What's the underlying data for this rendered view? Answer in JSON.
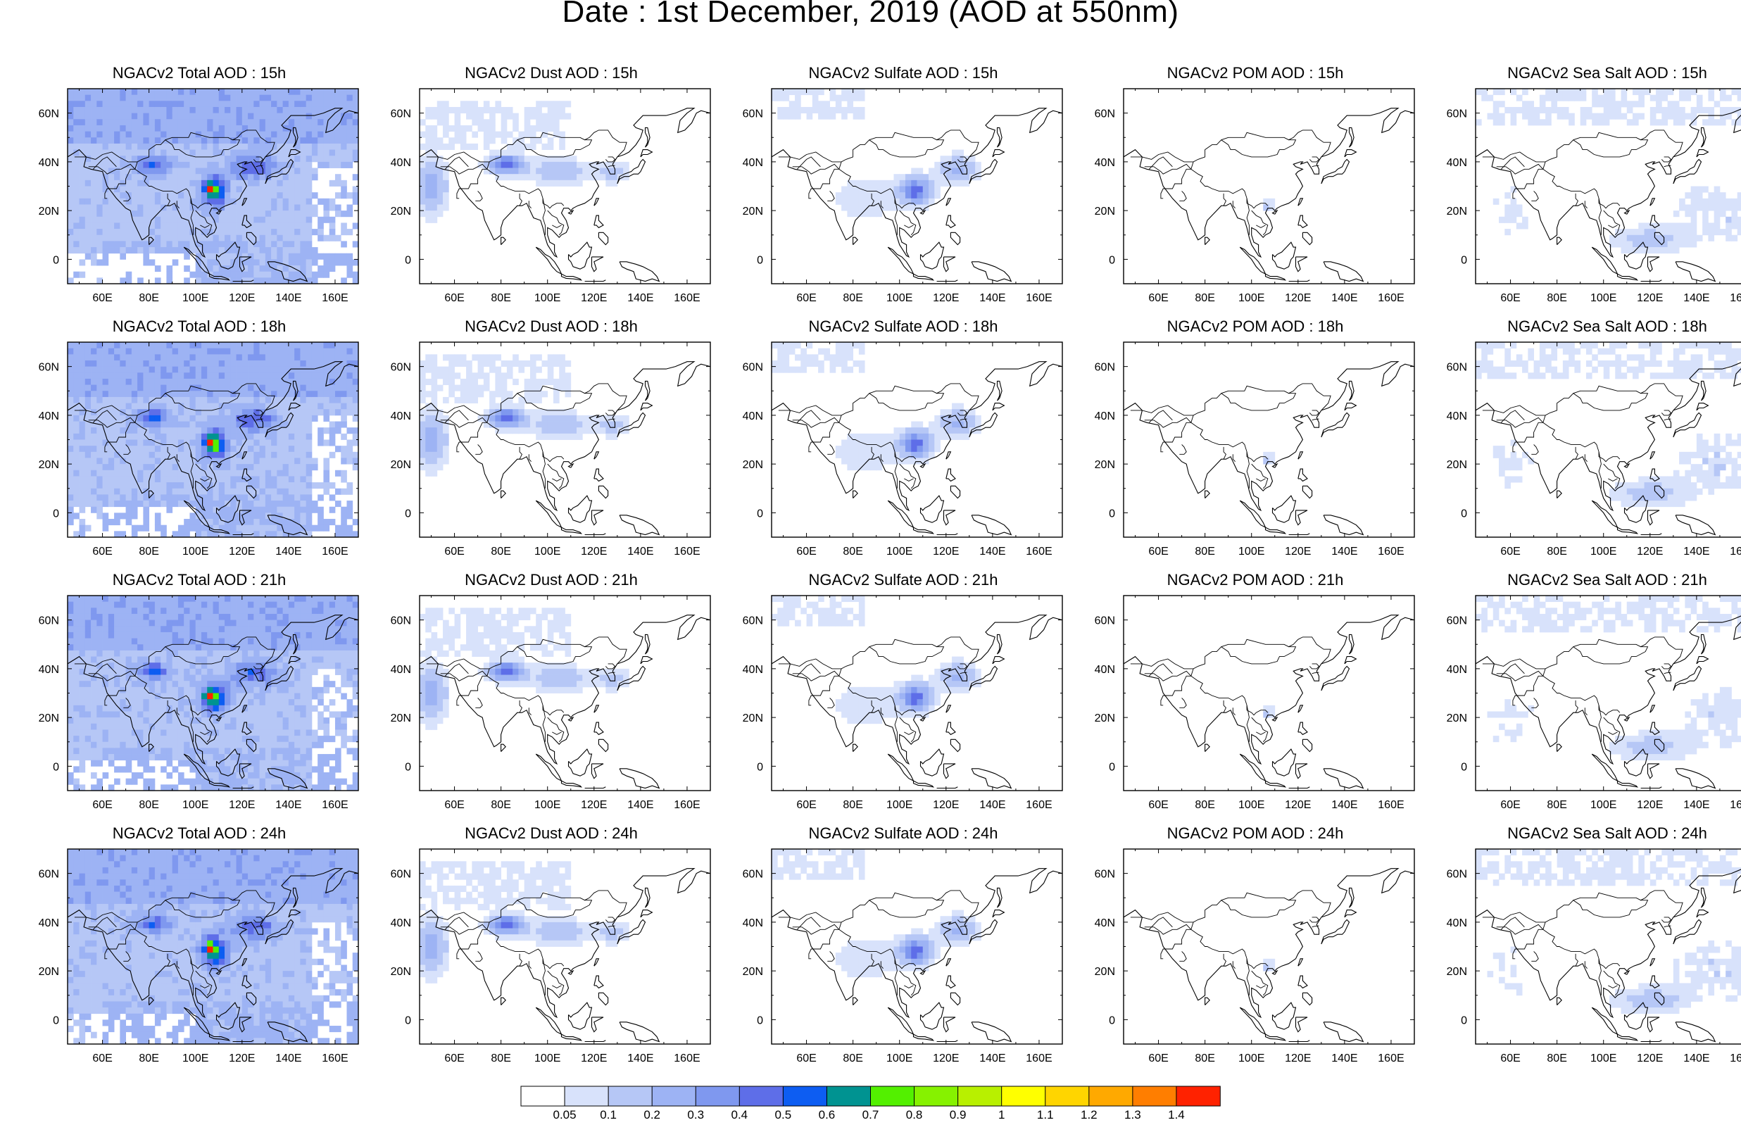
{
  "title": "Date : 1st December, 2019 (AOD at 550nm)",
  "colors": {
    "levels": [
      "#ffffff",
      "#d8e2fb",
      "#b6c7f6",
      "#9db3f4",
      "#7f98ef",
      "#5e6ee8",
      "#0d5df2",
      "#009391",
      "#53f000",
      "#86f200",
      "#b8f000",
      "#ffff00",
      "#ffd500",
      "#ffa900",
      "#ff7e00",
      "#ff2200"
    ],
    "coast": "#000000"
  },
  "colorbar": {
    "labels": [
      "0.05",
      "0.1",
      "0.2",
      "0.3",
      "0.4",
      "0.5",
      "0.6",
      "0.7",
      "0.8",
      "0.9",
      "1",
      "1.1",
      "1.2",
      "1.3",
      "1.4"
    ]
  },
  "axes": {
    "x_ticks": [
      "60E",
      "80E",
      "100E",
      "120E",
      "140E",
      "160E"
    ],
    "y_ticks": [
      "60N",
      "40N",
      "20N",
      "0"
    ]
  },
  "panels": [
    {
      "title": "NGACv2 Total AOD : 15h",
      "species": "total",
      "hour": 15
    },
    {
      "title": "NGACv2 Dust AOD : 15h",
      "species": "dust",
      "hour": 15
    },
    {
      "title": "NGACv2 Sulfate AOD : 15h",
      "species": "sulfate",
      "hour": 15
    },
    {
      "title": "NGACv2 POM AOD : 15h",
      "species": "pom",
      "hour": 15
    },
    {
      "title": "NGACv2 Sea Salt AOD : 15h",
      "species": "seasalt",
      "hour": 15
    },
    {
      "title": "NGACv2 Total AOD : 18h",
      "species": "total",
      "hour": 18
    },
    {
      "title": "NGACv2 Dust AOD : 18h",
      "species": "dust",
      "hour": 18
    },
    {
      "title": "NGACv2 Sulfate AOD : 18h",
      "species": "sulfate",
      "hour": 18
    },
    {
      "title": "NGACv2 POM AOD : 18h",
      "species": "pom",
      "hour": 18
    },
    {
      "title": "NGACv2 Sea Salt AOD : 18h",
      "species": "seasalt",
      "hour": 18
    },
    {
      "title": "NGACv2 Total AOD : 21h",
      "species": "total",
      "hour": 21
    },
    {
      "title": "NGACv2 Dust AOD : 21h",
      "species": "dust",
      "hour": 21
    },
    {
      "title": "NGACv2 Sulfate AOD : 21h",
      "species": "sulfate",
      "hour": 21
    },
    {
      "title": "NGACv2 POM AOD : 21h",
      "species": "pom",
      "hour": 21
    },
    {
      "title": "NGACv2 Sea Salt AOD : 21h",
      "species": "seasalt",
      "hour": 21
    },
    {
      "title": "NGACv2 Total AOD : 24h",
      "species": "total",
      "hour": 24
    },
    {
      "title": "NGACv2 Dust AOD : 24h",
      "species": "dust",
      "hour": 24
    },
    {
      "title": "NGACv2 Sulfate AOD : 24h",
      "species": "sulfate",
      "hour": 24
    },
    {
      "title": "NGACv2 POM AOD : 24h",
      "species": "pom",
      "hour": 24
    },
    {
      "title": "NGACv2 Sea Salt  AOD : 24h",
      "species": "seasalt",
      "hour": 24
    }
  ]
}
